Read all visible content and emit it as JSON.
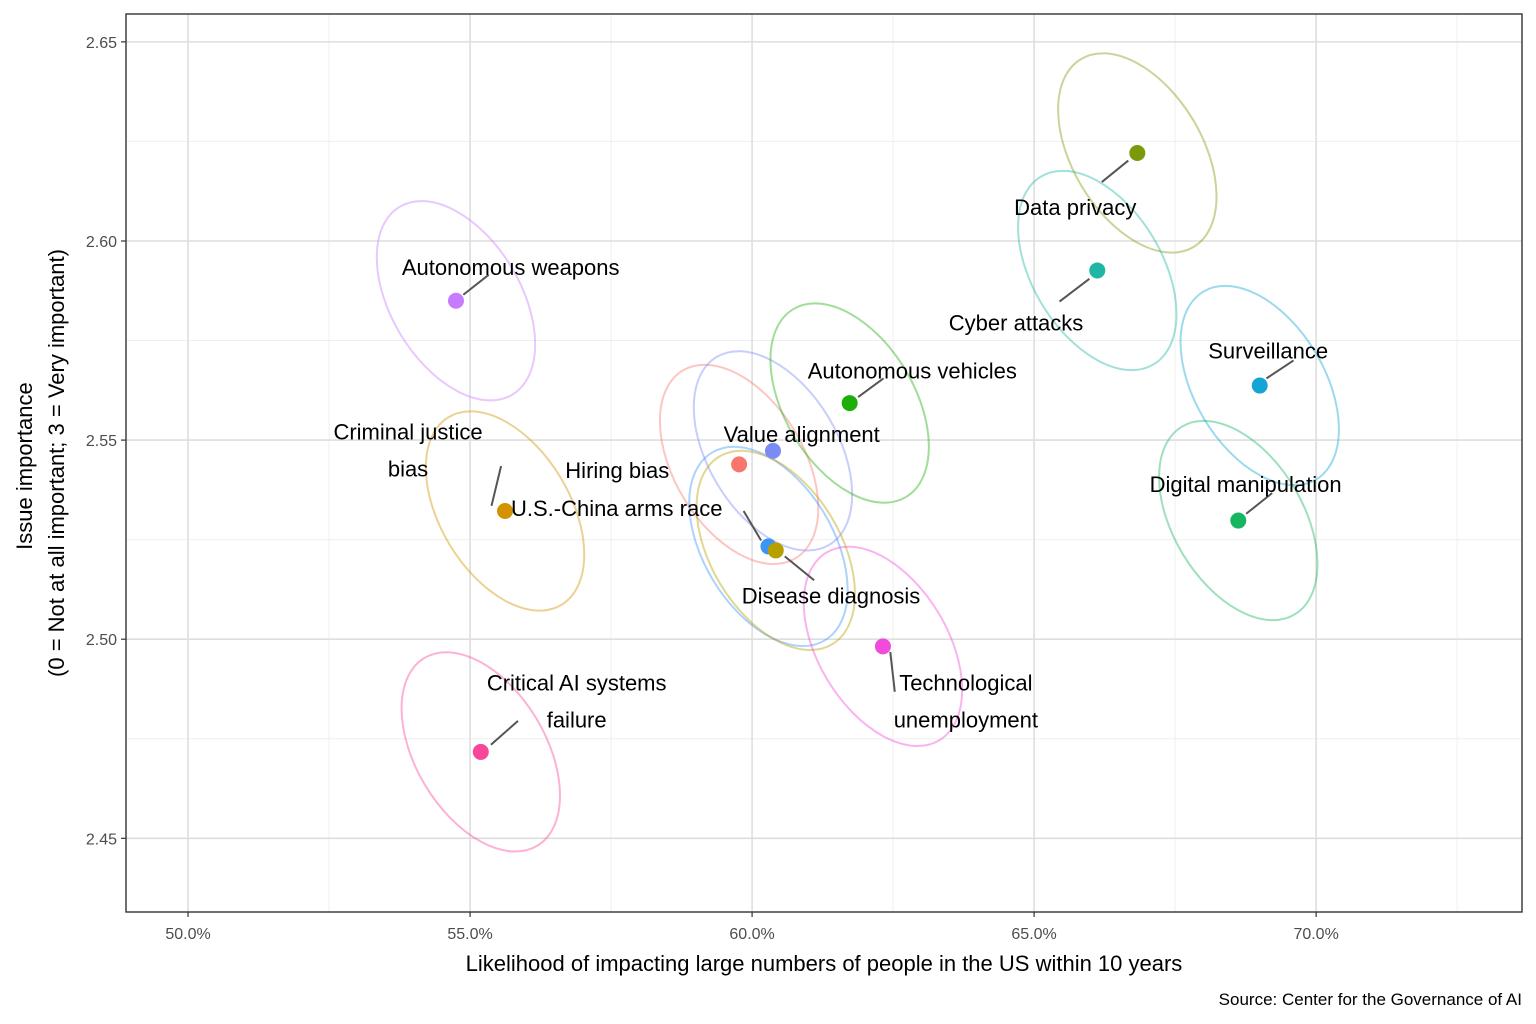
{
  "chart_data": {
    "type": "scatter",
    "title": "",
    "xlabel": "Likelihood of impacting large numbers of people in the US within 10 years",
    "ylabel_lines": [
      "Issue importance",
      "(0 = Not at all important; 3 = Very important)"
    ],
    "caption": "Source: Center for the Governance of AI",
    "xlim": [
      0.489,
      0.7365
    ],
    "ylim": [
      2.4315,
      2.657
    ],
    "x_ticks": [
      0.5,
      0.55,
      0.6,
      0.65,
      0.7
    ],
    "x_tick_labels": [
      "50.0%",
      "55.0%",
      "60.0%",
      "65.0%",
      "70.0%"
    ],
    "y_ticks": [
      2.45,
      2.5,
      2.55,
      2.6,
      2.65
    ],
    "y_tick_labels": [
      "2.45",
      "2.50",
      "2.55",
      "2.60",
      "2.65"
    ],
    "grid": true,
    "legend": "none",
    "points": [
      {
        "name": "Autonomous weapons",
        "label_lines": [
          "Autonomous weapons"
        ],
        "x": 0.5475,
        "y": 2.585,
        "color": "#C77CFF",
        "ellipse": {
          "rx": 0.0115,
          "ry": 0.0275,
          "angle": -31
        },
        "label": {
          "x": 0.5572,
          "y": 2.5935
        },
        "leader": [
          [
            0.5488,
            2.5865
          ],
          [
            0.5533,
            2.5915
          ]
        ]
      },
      {
        "name": "Criminal justice bias",
        "label_lines": [
          "Criminal justice",
          "bias"
        ],
        "x": 0.5562,
        "y": 2.5322,
        "color": "#D39200",
        "ellipse": {
          "rx": 0.0115,
          "ry": 0.0275,
          "angle": -31
        },
        "label": {
          "x": 0.539,
          "y": 2.5475
        },
        "leader": [
          [
            0.5555,
            2.5435
          ],
          [
            0.5538,
            2.5335
          ]
        ]
      },
      {
        "name": "Critical AI systems failure",
        "label_lines": [
          "Critical AI systems",
          "failure"
        ],
        "x": 0.5519,
        "y": 2.4717,
        "color": "#F8479A",
        "ellipse": {
          "rx": 0.0115,
          "ry": 0.0275,
          "angle": -31
        },
        "label": {
          "x": 0.5689,
          "y": 2.4845
        },
        "leader": [
          [
            0.5537,
            2.4735
          ],
          [
            0.5585,
            2.4795
          ]
        ]
      },
      {
        "name": "Hiring bias",
        "label_lines": [
          "Hiring bias"
        ],
        "x": 0.5977,
        "y": 2.5439,
        "color": "#F8766D",
        "ellipse": {
          "rx": 0.0115,
          "ry": 0.0275,
          "angle": -31
        },
        "label": {
          "x": 0.5761,
          "y": 2.5425
        },
        "leader": null
      },
      {
        "name": "Value alignment",
        "label_lines": [
          "Value alignment"
        ],
        "x": 0.6037,
        "y": 2.5473,
        "color": "#7B8BF5",
        "ellipse": {
          "rx": 0.0115,
          "ry": 0.0275,
          "angle": -31
        },
        "label": {
          "x": 0.6088,
          "y": 2.5515
        },
        "leader": null
      },
      {
        "name": "U.S.-China arms race",
        "label_lines": [
          "U.S.-China arms race"
        ],
        "x": 0.6029,
        "y": 2.5233,
        "color": "#3A95F5",
        "ellipse": {
          "rx": 0.0115,
          "ry": 0.0275,
          "angle": -31
        },
        "label": {
          "x": 0.576,
          "y": 2.533
        },
        "leader": [
          [
            0.5985,
            2.5322
          ],
          [
            0.6016,
            2.5248
          ]
        ]
      },
      {
        "name": "Disease diagnosis",
        "label_lines": [
          "Disease diagnosis"
        ],
        "x": 0.6042,
        "y": 2.5223,
        "color": "#B79F00",
        "ellipse": {
          "rx": 0.0115,
          "ry": 0.0275,
          "angle": -31
        },
        "label": {
          "x": 0.614,
          "y": 2.511
        },
        "leader": [
          [
            0.6058,
            2.5208
          ],
          [
            0.611,
            2.5148
          ]
        ]
      },
      {
        "name": "Autonomous vehicles",
        "label_lines": [
          "Autonomous vehicles"
        ],
        "x": 0.6173,
        "y": 2.5593,
        "color": "#1DAE0A",
        "ellipse": {
          "rx": 0.0115,
          "ry": 0.0275,
          "angle": -31
        },
        "label": {
          "x": 0.6284,
          "y": 2.5675
        },
        "leader": [
          [
            0.6188,
            2.5608
          ],
          [
            0.6233,
            2.5655
          ]
        ]
      },
      {
        "name": "Technological unemployment",
        "label_lines": [
          "Technological",
          "unemployment"
        ],
        "x": 0.6232,
        "y": 2.4982,
        "color": "#F14BDB",
        "ellipse": {
          "rx": 0.0115,
          "ry": 0.0275,
          "angle": -31
        },
        "label": {
          "x": 0.6379,
          "y": 2.4845
        },
        "leader": [
          [
            0.6245,
            2.4968
          ],
          [
            0.6253,
            2.4868
          ]
        ]
      },
      {
        "name": "Cyber attacks",
        "label_lines": [
          "Cyber attacks"
        ],
        "x": 0.6612,
        "y": 2.5926,
        "color": "#21B5A6",
        "ellipse": {
          "rx": 0.0115,
          "ry": 0.0275,
          "angle": -31
        },
        "label": {
          "x": 0.6468,
          "y": 2.5795
        },
        "leader": [
          [
            0.6598,
            2.5905
          ],
          [
            0.6545,
            2.5848
          ]
        ]
      },
      {
        "name": "Data privacy",
        "label_lines": [
          "Data privacy"
        ],
        "x": 0.6683,
        "y": 2.6221,
        "color": "#7A9A0A",
        "ellipse": {
          "rx": 0.0115,
          "ry": 0.0275,
          "angle": -31
        },
        "label": {
          "x": 0.6573,
          "y": 2.6085
        },
        "leader": [
          [
            0.6667,
            2.6202
          ],
          [
            0.662,
            2.6148
          ]
        ]
      },
      {
        "name": "Surveillance",
        "label_lines": [
          "Surveillance"
        ],
        "x": 0.69,
        "y": 2.5637,
        "color": "#15A4D6",
        "ellipse": {
          "rx": 0.0115,
          "ry": 0.0275,
          "angle": -31
        },
        "label": {
          "x": 0.6915,
          "y": 2.5725
        },
        "leader": [
          [
            0.6912,
            2.5655
          ],
          [
            0.696,
            2.57
          ]
        ]
      },
      {
        "name": "Digital manipulation",
        "label_lines": [
          "Digital manipulation"
        ],
        "x": 0.6862,
        "y": 2.5298,
        "color": "#17B561",
        "ellipse": {
          "rx": 0.0115,
          "ry": 0.0275,
          "angle": -31
        },
        "label": {
          "x": 0.6875,
          "y": 2.539
        },
        "leader": [
          [
            0.6876,
            2.5315
          ],
          [
            0.6922,
            2.5367
          ]
        ]
      }
    ]
  }
}
